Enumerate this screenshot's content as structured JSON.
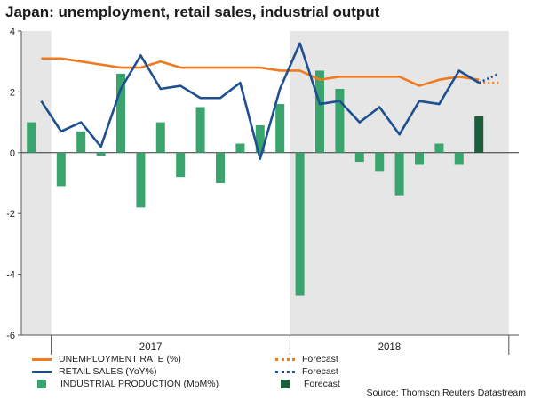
{
  "title": "Japan: unemployment, retail sales, industrial output",
  "source": "Source: Thomson Reuters Datastream",
  "colors": {
    "unemployment": "#f07a1f",
    "retail": "#1d4f91",
    "production": "#3aa46e",
    "production_forecast": "#1b5e3b",
    "shade": "#e6e6e6",
    "axis": "#555555"
  },
  "legend": {
    "unemployment_label": "UNEMPLOYMENT RATE (%)",
    "retail_label": "RETAIL SALES (YoY%)",
    "production_label": "INDUSTRIAL PRODUCTION (MoM%)",
    "forecast_label_1": "Forecast",
    "forecast_label_2": "Forecast",
    "forecast_label_3": "Forecast"
  },
  "chart_data": {
    "type": "bar+line",
    "ylim": [
      -6,
      4
    ],
    "yticks": [
      -6,
      -4,
      -2,
      0,
      2,
      4
    ],
    "x_label_groups": [
      {
        "label": "2017",
        "start": 1,
        "end": 12
      },
      {
        "label": "2018",
        "start": 13,
        "end": 24
      }
    ],
    "shaded_ranges": [
      [
        0,
        1.5
      ],
      [
        13.5,
        24.5
      ]
    ],
    "x": [
      1,
      2,
      3,
      4,
      5,
      6,
      7,
      8,
      9,
      10,
      11,
      12,
      13,
      14,
      15,
      16,
      17,
      18,
      19,
      20,
      21,
      22,
      23,
      24
    ],
    "series": [
      {
        "name": "UNEMPLOYMENT RATE (%)",
        "kind": "line",
        "values": [
          3.1,
          3.1,
          3.0,
          2.9,
          2.8,
          2.8,
          3.0,
          2.8,
          2.8,
          2.8,
          2.8,
          2.8,
          2.7,
          2.7,
          2.4,
          2.5,
          2.5,
          2.5,
          2.5,
          2.2,
          2.4,
          2.5,
          2.4,
          2.3
        ],
        "forecast": [
          [
            23,
            2.3
          ],
          [
            24,
            2.3
          ]
        ]
      },
      {
        "name": "RETAIL SALES (YoY%)",
        "kind": "line",
        "values": [
          1.7,
          0.7,
          1.0,
          0.2,
          2.1,
          3.2,
          2.1,
          2.2,
          1.8,
          1.8,
          2.3,
          -0.2,
          2.1,
          3.6,
          1.6,
          1.7,
          1.0,
          1.5,
          0.6,
          1.7,
          1.6,
          2.7,
          2.3,
          2.6
        ],
        "forecast": [
          [
            23,
            2.3
          ],
          [
            24,
            2.6
          ]
        ]
      },
      {
        "name": "INDUSTRIAL PRODUCTION (MoM%)",
        "kind": "bar",
        "values": [
          1.0,
          -1.1,
          0.7,
          -0.1,
          2.6,
          -1.8,
          1.0,
          -0.8,
          1.5,
          -1.0,
          0.3,
          0.9,
          1.6,
          -4.7,
          2.7,
          2.1,
          -0.3,
          -0.6,
          -1.4,
          -0.4,
          0.3,
          -0.4,
          1.2,
          null
        ],
        "bar_x": [
          0.5,
          2,
          3,
          4,
          5,
          6,
          7,
          8,
          9,
          10,
          11,
          12,
          13,
          14,
          15,
          16,
          17,
          18,
          19,
          20,
          21,
          22,
          23,
          null
        ],
        "forecast_index": 22
      }
    ]
  }
}
